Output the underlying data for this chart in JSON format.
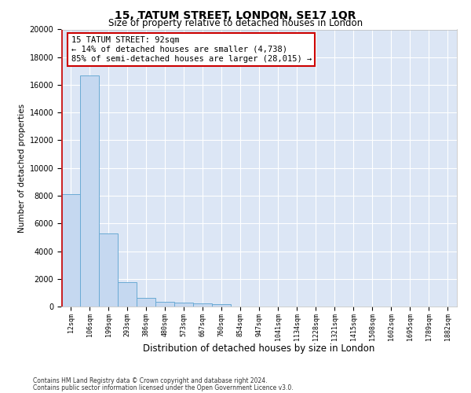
{
  "title": "15, TATUM STREET, LONDON, SE17 1QR",
  "subtitle": "Size of property relative to detached houses in London",
  "xlabel": "Distribution of detached houses by size in London",
  "ylabel": "Number of detached properties",
  "categories": [
    "12sqm",
    "106sqm",
    "199sqm",
    "293sqm",
    "386sqm",
    "480sqm",
    "573sqm",
    "667sqm",
    "760sqm",
    "854sqm",
    "947sqm",
    "1041sqm",
    "1134sqm",
    "1228sqm",
    "1321sqm",
    "1415sqm",
    "1508sqm",
    "1602sqm",
    "1695sqm",
    "1789sqm",
    "1882sqm"
  ],
  "bar_values": [
    8100,
    16700,
    5300,
    1750,
    650,
    350,
    270,
    220,
    180,
    0,
    0,
    0,
    0,
    0,
    0,
    0,
    0,
    0,
    0,
    0,
    0
  ],
  "bar_color": "#c5d8f0",
  "bar_edge_color": "#6aaad4",
  "vline_color": "#cc0000",
  "vline_x": -0.45,
  "annotation_text": "15 TATUM STREET: 92sqm\n← 14% of detached houses are smaller (4,738)\n85% of semi-detached houses are larger (28,015) →",
  "annotation_box_color": "#ffffff",
  "annotation_box_edge": "#cc0000",
  "ylim": [
    0,
    20000
  ],
  "yticks": [
    0,
    2000,
    4000,
    6000,
    8000,
    10000,
    12000,
    14000,
    16000,
    18000,
    20000
  ],
  "background_color": "#dce6f5",
  "grid_color": "#ffffff",
  "footer1": "Contains HM Land Registry data © Crown copyright and database right 2024.",
  "footer2": "Contains public sector information licensed under the Open Government Licence v3.0.",
  "title_fontsize": 10,
  "subtitle_fontsize": 8.5,
  "xlabel_fontsize": 8.5,
  "ylabel_fontsize": 7.5,
  "tick_fontsize": 7,
  "xtick_fontsize": 6
}
